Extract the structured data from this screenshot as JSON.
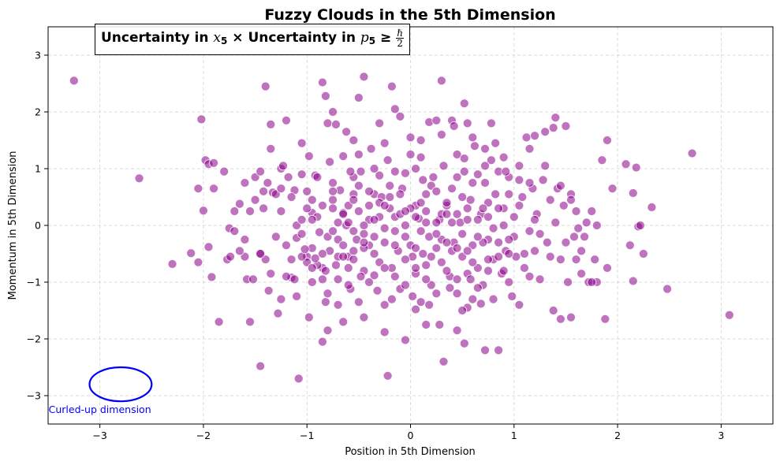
{
  "chart_data": {
    "type": "scatter",
    "title": "Fuzzy Clouds in the 5th Dimension",
    "xlabel": "Position in 5th Dimension",
    "ylabel": "Momentum in 5th Dimension",
    "xlim": [
      -3.5,
      3.5
    ],
    "ylim": [
      -3.5,
      3.5
    ],
    "xticks": [
      -3,
      -2,
      -1,
      0,
      1,
      2,
      3
    ],
    "yticks": [
      -3,
      -2,
      -1,
      0,
      1,
      2,
      3
    ],
    "grid": true,
    "point_color": "#8b008b",
    "point_alpha": 0.55,
    "annotation_box": {
      "part1": "Uncertainty in ",
      "var1": "x",
      "sub1": "5",
      "part2": " × Uncertainty in ",
      "var2": "p",
      "sub2": "5",
      "part3": " ≥ ",
      "frac_num": "ℏ",
      "frac_den": "2"
    },
    "ellipse": {
      "center": [
        -2.8,
        -2.8
      ],
      "rx": 0.3,
      "ry": 0.3,
      "color": "#0000ff",
      "label": "Curled-up dimension",
      "label_pos": [
        -3.0,
        -3.25
      ]
    },
    "points": [
      [
        -3.25,
        2.55
      ],
      [
        -2.62,
        0.83
      ],
      [
        -2.3,
        -0.68
      ],
      [
        -2.12,
        -0.49
      ],
      [
        -2.05,
        0.65
      ],
      [
        -2.02,
        1.87
      ],
      [
        -2.0,
        0.26
      ],
      [
        -1.98,
        1.15
      ],
      [
        -1.95,
        1.08
      ],
      [
        -1.95,
        -0.38
      ],
      [
        -1.92,
        -0.91
      ],
      [
        -1.9,
        0.65
      ],
      [
        -1.85,
        -1.7
      ],
      [
        -1.77,
        -0.6
      ],
      [
        -1.75,
        -0.05
      ],
      [
        -1.74,
        -0.55
      ],
      [
        -1.7,
        0.25
      ],
      [
        -1.65,
        0.38
      ],
      [
        -1.6,
        -0.25
      ],
      [
        -1.6,
        0.75
      ],
      [
        -1.58,
        -0.95
      ],
      [
        -1.55,
        -1.7
      ],
      [
        -1.52,
        -0.95
      ],
      [
        -1.5,
        0.45
      ],
      [
        -1.45,
        -2.48
      ],
      [
        -1.45,
        -0.5
      ],
      [
        -1.42,
        0.3
      ],
      [
        -1.4,
        -0.6
      ],
      [
        -1.38,
        0.75
      ],
      [
        -1.37,
        -1.15
      ],
      [
        -1.35,
        1.35
      ],
      [
        -1.33,
        0.58
      ],
      [
        -1.3,
        0.55
      ],
      [
        -1.28,
        -1.55
      ],
      [
        -1.25,
        1.0
      ],
      [
        -1.23,
        1.05
      ],
      [
        -1.2,
        1.85
      ],
      [
        -1.15,
        -0.92
      ],
      [
        -1.12,
        0.62
      ],
      [
        -1.1,
        -0.22
      ],
      [
        -1.1,
        0.0
      ],
      [
        -1.08,
        -2.7
      ],
      [
        -1.05,
        1.45
      ],
      [
        -1.05,
        0.1
      ],
      [
        -1.0,
        0.6
      ],
      [
        -1.0,
        -0.55
      ],
      [
        -0.98,
        -1.62
      ],
      [
        -0.95,
        -0.4
      ],
      [
        -0.95,
        0.22
      ],
      [
        -0.92,
        0.88
      ],
      [
        -0.9,
        0.85
      ],
      [
        -0.88,
        -0.12
      ],
      [
        -0.85,
        -0.75
      ],
      [
        -0.82,
        -1.35
      ],
      [
        -0.8,
        1.8
      ],
      [
        -0.8,
        -1.2
      ],
      [
        -0.78,
        -0.45
      ],
      [
        -0.75,
        0.45
      ],
      [
        -0.75,
        0.3
      ],
      [
        -0.7,
        -0.55
      ],
      [
        -0.7,
        -0.95
      ],
      [
        -0.68,
        0.62
      ],
      [
        -0.65,
        0.22
      ],
      [
        -0.62,
        0.0
      ],
      [
        -0.6,
        -0.75
      ],
      [
        -0.6,
        -0.55
      ],
      [
        -0.58,
        -1.12
      ],
      [
        -0.55,
        -0.45
      ],
      [
        -0.55,
        0.55
      ],
      [
        -0.52,
        -0.25
      ],
      [
        -0.5,
        1.25
      ],
      [
        -0.48,
        0.95
      ],
      [
        -0.45,
        -1.62
      ],
      [
        -0.45,
        -0.8
      ],
      [
        -0.4,
        0.1
      ],
      [
        -0.4,
        -0.35
      ],
      [
        -0.38,
        1.35
      ],
      [
        -0.35,
        -0.88
      ],
      [
        -0.35,
        0.55
      ],
      [
        -0.3,
        0.88
      ],
      [
        -0.3,
        -0.65
      ],
      [
        -0.28,
        0.5
      ],
      [
        -0.25,
        -1.4
      ],
      [
        -0.2,
        0.3
      ],
      [
        -0.18,
        -0.75
      ],
      [
        -0.15,
        0.15
      ],
      [
        -0.12,
        -0.45
      ],
      [
        -0.1,
        -1.12
      ],
      [
        -0.08,
        0.65
      ],
      [
        -0.05,
        0.92
      ],
      [
        -0.05,
        -0.2
      ],
      [
        0.0,
        1.25
      ],
      [
        0.02,
        -0.55
      ],
      [
        0.05,
        0.35
      ],
      [
        0.05,
        -0.85
      ],
      [
        0.08,
        0.12
      ],
      [
        0.1,
        -1.35
      ],
      [
        0.1,
        1.5
      ],
      [
        0.12,
        -0.5
      ],
      [
        0.15,
        0.55
      ],
      [
        0.18,
        -0.2
      ],
      [
        0.2,
        -1.05
      ],
      [
        0.22,
        0.85
      ],
      [
        0.25,
        -0.4
      ],
      [
        0.28,
        0.1
      ],
      [
        0.3,
        1.6
      ],
      [
        0.3,
        -0.65
      ],
      [
        0.32,
        -2.4
      ],
      [
        0.35,
        0.35
      ],
      [
        0.38,
        -0.9
      ],
      [
        0.4,
        0.65
      ],
      [
        0.42,
        -0.3
      ],
      [
        0.45,
        -1.2
      ],
      [
        0.45,
        1.25
      ],
      [
        0.48,
        0.05
      ],
      [
        0.5,
        -0.55
      ],
      [
        0.52,
        0.95
      ],
      [
        0.55,
        -1.45
      ],
      [
        0.58,
        0.45
      ],
      [
        0.6,
        -0.35
      ],
      [
        0.62,
        1.4
      ],
      [
        0.65,
        -0.75
      ],
      [
        0.68,
        0.2
      ],
      [
        0.7,
        -1.05
      ],
      [
        0.72,
        0.75
      ],
      [
        0.75,
        -0.25
      ],
      [
        0.78,
        1.15
      ],
      [
        0.8,
        -0.6
      ],
      [
        0.82,
        0.55
      ],
      [
        0.85,
        -2.2
      ],
      [
        0.88,
        -0.85
      ],
      [
        0.9,
        0.3
      ],
      [
        0.92,
        -0.45
      ],
      [
        0.95,
        0.85
      ],
      [
        0.98,
        -1.25
      ],
      [
        1.0,
        0.15
      ],
      [
        1.02,
        -0.55
      ],
      [
        1.05,
        1.05
      ],
      [
        1.08,
        0.5
      ],
      [
        1.1,
        -0.75
      ],
      [
        1.12,
        1.55
      ],
      [
        1.15,
        -0.1
      ],
      [
        1.18,
        0.65
      ],
      [
        1.2,
        -0.45
      ],
      [
        1.22,
        0.2
      ],
      [
        1.25,
        -0.95
      ],
      [
        1.28,
        0.8
      ],
      [
        1.3,
        1.65
      ],
      [
        1.32,
        -0.3
      ],
      [
        1.35,
        0.45
      ],
      [
        1.38,
        -1.5
      ],
      [
        1.4,
        1.9
      ],
      [
        1.42,
        0.65
      ],
      [
        1.45,
        -0.6
      ],
      [
        1.45,
        -1.65
      ],
      [
        1.48,
        0.35
      ],
      [
        1.5,
        1.75
      ],
      [
        1.52,
        -1.0
      ],
      [
        1.55,
        0.55
      ],
      [
        1.55,
        -1.62
      ],
      [
        1.58,
        -0.2
      ],
      [
        1.6,
        0.25
      ],
      [
        1.62,
        -0.05
      ],
      [
        1.65,
        -0.45
      ],
      [
        1.68,
        -0.2
      ],
      [
        1.72,
        -1.0
      ],
      [
        1.75,
        0.25
      ],
      [
        1.78,
        -0.6
      ],
      [
        1.8,
        -1.0
      ],
      [
        1.85,
        1.15
      ],
      [
        1.88,
        -1.65
      ],
      [
        1.9,
        -0.75
      ],
      [
        1.9,
        1.5
      ],
      [
        1.95,
        0.65
      ],
      [
        2.08,
        1.08
      ],
      [
        2.12,
        -0.35
      ],
      [
        2.15,
        -0.98
      ],
      [
        2.15,
        0.57
      ],
      [
        2.18,
        1.02
      ],
      [
        2.2,
        -0.02
      ],
      [
        2.22,
        0.0
      ],
      [
        2.25,
        -0.5
      ],
      [
        2.33,
        0.32
      ],
      [
        2.48,
        -1.12
      ],
      [
        2.72,
        1.27
      ],
      [
        3.08,
        -1.58
      ],
      [
        -1.25,
        -1.3
      ],
      [
        -1.1,
        -1.25
      ],
      [
        -0.95,
        -1.0
      ],
      [
        -0.85,
        2.52
      ],
      [
        -0.82,
        2.28
      ],
      [
        -0.75,
        2.0
      ],
      [
        -0.72,
        1.78
      ],
      [
        -0.65,
        1.22
      ],
      [
        -0.62,
        1.65
      ],
      [
        -0.55,
        1.5
      ],
      [
        -0.5,
        2.25
      ],
      [
        -0.45,
        2.62
      ],
      [
        -0.3,
        1.8
      ],
      [
        -0.25,
        1.45
      ],
      [
        -0.22,
        1.15
      ],
      [
        -0.18,
        2.45
      ],
      [
        -0.15,
        2.05
      ],
      [
        -0.1,
        1.92
      ],
      [
        0.0,
        1.55
      ],
      [
        0.1,
        1.2
      ],
      [
        0.18,
        1.82
      ],
      [
        0.25,
        1.85
      ],
      [
        0.3,
        2.55
      ],
      [
        0.4,
        1.85
      ],
      [
        0.42,
        1.75
      ],
      [
        0.52,
        2.15
      ],
      [
        0.55,
        1.8
      ],
      [
        0.6,
        1.55
      ],
      [
        0.72,
        1.35
      ],
      [
        0.78,
        1.8
      ],
      [
        0.82,
        1.45
      ],
      [
        0.9,
        1.2
      ],
      [
        1.15,
        1.35
      ],
      [
        1.2,
        1.58
      ],
      [
        1.38,
        1.72
      ],
      [
        -1.4,
        2.45
      ],
      [
        -1.35,
        1.78
      ],
      [
        -0.85,
        -2.05
      ],
      [
        -0.8,
        -1.85
      ],
      [
        -0.65,
        -1.7
      ],
      [
        -0.5,
        -1.35
      ],
      [
        -0.4,
        -1.0
      ],
      [
        -0.25,
        -1.88
      ],
      [
        -0.22,
        -2.65
      ],
      [
        -0.05,
        -2.02
      ],
      [
        0.05,
        -1.48
      ],
      [
        0.15,
        -1.75
      ],
      [
        0.28,
        -1.75
      ],
      [
        0.45,
        -1.85
      ],
      [
        0.5,
        -1.5
      ],
      [
        0.52,
        -2.08
      ],
      [
        0.6,
        -1.3
      ],
      [
        0.72,
        -2.2
      ],
      [
        0.8,
        -1.3
      ],
      [
        0.95,
        -1.0
      ],
      [
        1.05,
        -1.4
      ],
      [
        -1.45,
        -0.5
      ],
      [
        -1.2,
        -0.9
      ],
      [
        -1.0,
        -0.65
      ],
      [
        -0.9,
        -0.7
      ],
      [
        -0.85,
        -0.5
      ],
      [
        -0.7,
        -0.25
      ],
      [
        -0.6,
        0.05
      ],
      [
        -0.55,
        -0.1
      ],
      [
        -0.5,
        0.25
      ],
      [
        -0.45,
        0.0
      ],
      [
        -0.4,
        0.35
      ],
      [
        -0.35,
        -0.2
      ],
      [
        -0.3,
        0.15
      ],
      [
        -0.25,
        -0.05
      ],
      [
        -0.2,
        0.5
      ],
      [
        -0.15,
        -0.35
      ],
      [
        -0.1,
        0.2
      ],
      [
        -0.05,
        0.0
      ],
      [
        0.0,
        -0.35
      ],
      [
        0.05,
        0.15
      ],
      [
        0.1,
        -0.1
      ],
      [
        0.15,
        0.25
      ],
      [
        0.2,
        -0.55
      ],
      [
        0.25,
        0.05
      ],
      [
        0.3,
        -0.25
      ],
      [
        0.35,
        0.4
      ],
      [
        0.4,
        -0.45
      ],
      [
        0.45,
        0.2
      ],
      [
        0.5,
        -0.15
      ],
      [
        0.55,
        0.3
      ],
      [
        0.6,
        -0.65
      ],
      [
        0.65,
        0.1
      ],
      [
        0.7,
        -0.3
      ],
      [
        0.75,
        0.4
      ],
      [
        0.8,
        -0.05
      ],
      [
        0.85,
        -0.55
      ],
      [
        0.9,
        0.0
      ],
      [
        0.95,
        -0.5
      ],
      [
        -1.9,
        1.1
      ],
      [
        -1.7,
        -0.1
      ],
      [
        -1.6,
        -0.55
      ],
      [
        -1.55,
        0.25
      ],
      [
        -1.5,
        0.85
      ],
      [
        -1.3,
        -0.2
      ],
      [
        -1.25,
        0.25
      ],
      [
        -1.2,
        -0.35
      ],
      [
        -1.15,
        0.5
      ],
      [
        -1.05,
        -0.55
      ],
      [
        -1.0,
        0.3
      ],
      [
        -0.95,
        -0.75
      ],
      [
        -0.9,
        0.15
      ],
      [
        -0.8,
        -0.2
      ],
      [
        -0.75,
        0.75
      ],
      [
        -0.7,
        0.05
      ],
      [
        -0.65,
        -0.35
      ],
      [
        -0.6,
        0.35
      ],
      [
        -0.55,
        -0.6
      ],
      [
        -0.5,
        0.7
      ],
      [
        -0.45,
        -0.15
      ],
      [
        -0.4,
        0.6
      ],
      [
        -0.35,
        -0.5
      ],
      [
        -0.3,
        0.4
      ],
      [
        -0.25,
        -0.75
      ],
      [
        -0.2,
        0.7
      ],
      [
        -0.15,
        -0.9
      ],
      [
        -0.1,
        0.55
      ],
      [
        -0.05,
        -0.6
      ],
      [
        0.0,
        0.3
      ],
      [
        0.05,
        -0.75
      ],
      [
        0.1,
        0.4
      ],
      [
        0.15,
        -0.95
      ],
      [
        0.2,
        0.7
      ],
      [
        0.25,
        -1.2
      ],
      [
        0.3,
        0.2
      ],
      [
        0.35,
        -0.8
      ],
      [
        0.4,
        0.05
      ],
      [
        0.45,
        -0.95
      ],
      [
        0.5,
        0.5
      ],
      [
        0.55,
        -0.45
      ],
      [
        0.6,
        0.75
      ],
      [
        0.65,
        -1.1
      ],
      [
        0.7,
        0.3
      ],
      [
        0.75,
        -0.8
      ],
      [
        0.85,
        0.3
      ],
      [
        0.9,
        -0.8
      ],
      [
        0.95,
        0.55
      ],
      [
        1.0,
        -0.2
      ],
      [
        1.05,
        0.35
      ],
      [
        1.1,
        -0.5
      ],
      [
        1.15,
        0.75
      ],
      [
        1.2,
        0.1
      ],
      [
        1.25,
        -0.15
      ],
      [
        1.3,
        1.05
      ],
      [
        1.35,
        -0.55
      ],
      [
        1.4,
        0.05
      ],
      [
        1.45,
        0.7
      ],
      [
        1.5,
        -0.3
      ],
      [
        1.55,
        0.45
      ],
      [
        1.6,
        -0.6
      ],
      [
        1.65,
        -0.85
      ],
      [
        1.7,
        0.05
      ],
      [
        1.75,
        -1.0
      ],
      [
        1.8,
        0.0
      ],
      [
        -2.05,
        -0.65
      ],
      [
        -1.8,
        0.95
      ],
      [
        -1.65,
        -0.45
      ],
      [
        -1.45,
        0.95
      ],
      [
        -1.35,
        -0.85
      ],
      [
        -1.25,
        0.65
      ],
      [
        -1.15,
        -0.6
      ],
      [
        -1.05,
        0.9
      ],
      [
        -0.95,
        0.45
      ],
      [
        -0.85,
        -0.95
      ],
      [
        -0.75,
        0.6
      ],
      [
        -0.65,
        -0.55
      ],
      [
        -0.55,
        0.85
      ],
      [
        -0.45,
        -0.4
      ],
      [
        -0.35,
        1.0
      ],
      [
        -0.25,
        -0.3
      ],
      [
        -0.15,
        0.95
      ],
      [
        -0.05,
        -1.05
      ],
      [
        0.05,
        1.0
      ],
      [
        0.15,
        -0.7
      ],
      [
        0.25,
        0.6
      ],
      [
        0.35,
        -0.3
      ],
      [
        0.45,
        0.85
      ],
      [
        0.55,
        -0.85
      ],
      [
        0.65,
        0.9
      ],
      [
        0.75,
        -0.6
      ],
      [
        0.85,
        0.95
      ],
      [
        0.95,
        -0.25
      ],
      [
        1.05,
        0.8
      ],
      [
        1.15,
        -0.9
      ],
      [
        -1.05,
        -0.15
      ],
      [
        -0.95,
        0.1
      ],
      [
        -0.85,
        0.35
      ],
      [
        -0.75,
        -0.1
      ],
      [
        -0.65,
        0.2
      ],
      [
        -0.55,
        0.45
      ],
      [
        -0.45,
        -0.3
      ],
      [
        -0.35,
        0.1
      ],
      [
        -0.25,
        0.35
      ],
      [
        -0.15,
        -0.1
      ],
      [
        -0.05,
        0.25
      ],
      [
        0.05,
        -0.4
      ],
      [
        0.15,
        0.05
      ],
      [
        0.25,
        -0.15
      ],
      [
        0.35,
        0.2
      ],
      [
        0.45,
        -0.4
      ],
      [
        0.55,
        0.1
      ],
      [
        0.65,
        -0.2
      ],
      [
        0.75,
        0.15
      ],
      [
        0.85,
        -0.3
      ],
      [
        -0.7,
        -1.4
      ],
      [
        -0.6,
        -1.05
      ],
      [
        -0.48,
        -0.9
      ],
      [
        -0.32,
        -1.15
      ],
      [
        -0.18,
        -1.3
      ],
      [
        0.02,
        -1.25
      ],
      [
        0.18,
        -1.4
      ],
      [
        0.38,
        -1.1
      ],
      [
        0.58,
        -0.95
      ],
      [
        0.68,
        -1.38
      ],
      [
        -1.12,
        -0.95
      ],
      [
        -1.02,
        -0.42
      ],
      [
        -0.92,
        -0.58
      ],
      [
        -0.82,
        -0.8
      ],
      [
        -0.72,
        -0.7
      ],
      [
        -1.42,
        0.6
      ],
      [
        -1.18,
        0.85
      ],
      [
        -0.98,
        1.22
      ],
      [
        -0.78,
        1.12
      ],
      [
        -0.58,
        0.95
      ],
      [
        0.12,
        0.8
      ],
      [
        0.32,
        1.05
      ],
      [
        0.52,
        1.18
      ],
      [
        0.72,
        1.05
      ],
      [
        0.92,
        0.95
      ]
    ]
  }
}
